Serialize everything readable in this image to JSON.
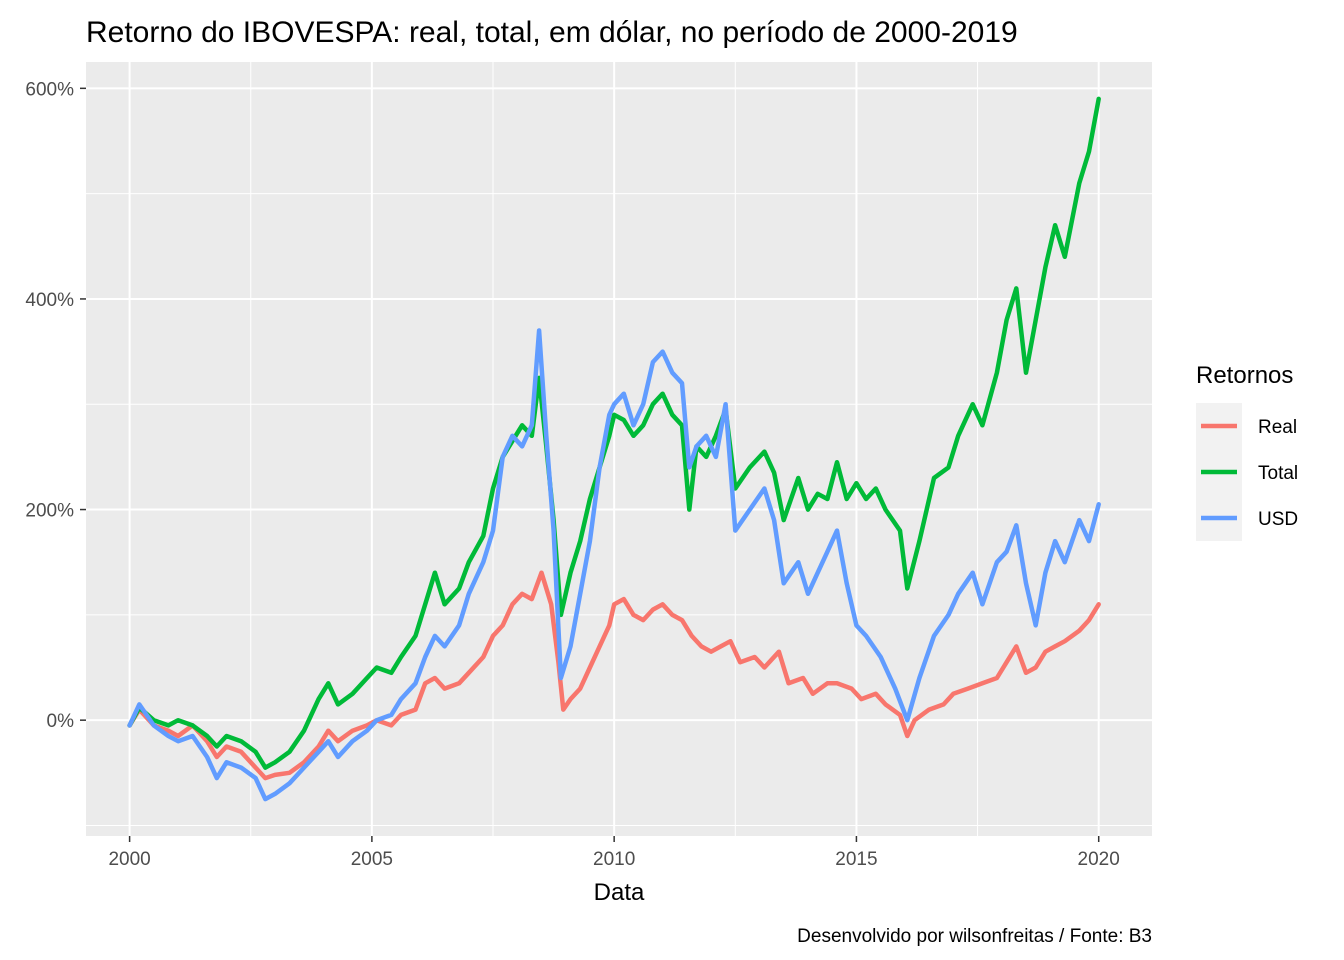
{
  "chart_data": {
    "type": "line",
    "title": "Retorno do IBOVESPA: real, total, em dólar, no período de 2000-2019",
    "xlabel": "Data",
    "ylabel": "",
    "caption": "Desenvolvido por wilsonfreitas / Fonte: B3",
    "xlim": [
      1999.1,
      2021.1
    ],
    "ylim": [
      -110,
      625
    ],
    "x_ticks": [
      2000,
      2005,
      2010,
      2015,
      2020
    ],
    "x_tick_labels": [
      "2000",
      "2005",
      "2010",
      "2015",
      "2020"
    ],
    "y_ticks": [
      0,
      200,
      400,
      600
    ],
    "y_tick_labels": [
      "0%",
      "200%",
      "400%",
      "600%"
    ],
    "grid": true,
    "legend": {
      "title": "Retornos",
      "position": "right"
    },
    "series": [
      {
        "name": "Real",
        "color": "#F8766D",
        "points": [
          [
            2000.0,
            -5
          ],
          [
            2000.2,
            10
          ],
          [
            2000.5,
            -5
          ],
          [
            2000.8,
            -10
          ],
          [
            2001.0,
            -15
          ],
          [
            2001.3,
            -5
          ],
          [
            2001.6,
            -20
          ],
          [
            2001.8,
            -35
          ],
          [
            2002.0,
            -25
          ],
          [
            2002.3,
            -30
          ],
          [
            2002.6,
            -45
          ],
          [
            2002.8,
            -55
          ],
          [
            2003.0,
            -52
          ],
          [
            2003.3,
            -50
          ],
          [
            2003.6,
            -40
          ],
          [
            2003.9,
            -25
          ],
          [
            2004.1,
            -10
          ],
          [
            2004.3,
            -20
          ],
          [
            2004.6,
            -10
          ],
          [
            2004.9,
            -5
          ],
          [
            2005.1,
            0
          ],
          [
            2005.4,
            -5
          ],
          [
            2005.6,
            5
          ],
          [
            2005.9,
            10
          ],
          [
            2006.1,
            35
          ],
          [
            2006.3,
            40
          ],
          [
            2006.5,
            30
          ],
          [
            2006.8,
            35
          ],
          [
            2007.0,
            45
          ],
          [
            2007.3,
            60
          ],
          [
            2007.5,
            80
          ],
          [
            2007.7,
            90
          ],
          [
            2007.9,
            110
          ],
          [
            2008.1,
            120
          ],
          [
            2008.3,
            115
          ],
          [
            2008.5,
            140
          ],
          [
            2008.7,
            110
          ],
          [
            2008.85,
            55
          ],
          [
            2008.95,
            10
          ],
          [
            2009.1,
            20
          ],
          [
            2009.3,
            30
          ],
          [
            2009.5,
            50
          ],
          [
            2009.7,
            70
          ],
          [
            2009.9,
            90
          ],
          [
            2010.0,
            110
          ],
          [
            2010.2,
            115
          ],
          [
            2010.4,
            100
          ],
          [
            2010.6,
            95
          ],
          [
            2010.8,
            105
          ],
          [
            2011.0,
            110
          ],
          [
            2011.2,
            100
          ],
          [
            2011.4,
            95
          ],
          [
            2011.6,
            80
          ],
          [
            2011.8,
            70
          ],
          [
            2012.0,
            65
          ],
          [
            2012.2,
            70
          ],
          [
            2012.4,
            75
          ],
          [
            2012.6,
            55
          ],
          [
            2012.9,
            60
          ],
          [
            2013.1,
            50
          ],
          [
            2013.4,
            65
          ],
          [
            2013.6,
            35
          ],
          [
            2013.9,
            40
          ],
          [
            2014.1,
            25
          ],
          [
            2014.4,
            35
          ],
          [
            2014.6,
            35
          ],
          [
            2014.9,
            30
          ],
          [
            2015.1,
            20
          ],
          [
            2015.4,
            25
          ],
          [
            2015.6,
            15
          ],
          [
            2015.9,
            5
          ],
          [
            2016.05,
            -15
          ],
          [
            2016.2,
            0
          ],
          [
            2016.5,
            10
          ],
          [
            2016.8,
            15
          ],
          [
            2017.0,
            25
          ],
          [
            2017.3,
            30
          ],
          [
            2017.6,
            35
          ],
          [
            2017.9,
            40
          ],
          [
            2018.1,
            55
          ],
          [
            2018.3,
            70
          ],
          [
            2018.5,
            45
          ],
          [
            2018.7,
            50
          ],
          [
            2018.9,
            65
          ],
          [
            2019.1,
            70
          ],
          [
            2019.3,
            75
          ],
          [
            2019.6,
            85
          ],
          [
            2019.8,
            95
          ],
          [
            2020.0,
            110
          ]
        ]
      },
      {
        "name": "Total",
        "color": "#00BA38",
        "points": [
          [
            2000.0,
            -5
          ],
          [
            2000.2,
            12
          ],
          [
            2000.5,
            0
          ],
          [
            2000.8,
            -5
          ],
          [
            2001.0,
            0
          ],
          [
            2001.3,
            -5
          ],
          [
            2001.6,
            -15
          ],
          [
            2001.8,
            -25
          ],
          [
            2002.0,
            -15
          ],
          [
            2002.3,
            -20
          ],
          [
            2002.6,
            -30
          ],
          [
            2002.8,
            -45
          ],
          [
            2003.0,
            -40
          ],
          [
            2003.3,
            -30
          ],
          [
            2003.6,
            -10
          ],
          [
            2003.9,
            20
          ],
          [
            2004.1,
            35
          ],
          [
            2004.3,
            15
          ],
          [
            2004.6,
            25
          ],
          [
            2004.9,
            40
          ],
          [
            2005.1,
            50
          ],
          [
            2005.4,
            45
          ],
          [
            2005.6,
            60
          ],
          [
            2005.9,
            80
          ],
          [
            2006.1,
            110
          ],
          [
            2006.3,
            140
          ],
          [
            2006.5,
            110
          ],
          [
            2006.8,
            125
          ],
          [
            2007.0,
            150
          ],
          [
            2007.3,
            175
          ],
          [
            2007.5,
            220
          ],
          [
            2007.7,
            250
          ],
          [
            2007.9,
            265
          ],
          [
            2008.1,
            280
          ],
          [
            2008.3,
            270
          ],
          [
            2008.45,
            325
          ],
          [
            2008.6,
            260
          ],
          [
            2008.75,
            190
          ],
          [
            2008.9,
            100
          ],
          [
            2009.1,
            140
          ],
          [
            2009.3,
            170
          ],
          [
            2009.5,
            210
          ],
          [
            2009.7,
            240
          ],
          [
            2009.9,
            270
          ],
          [
            2010.0,
            290
          ],
          [
            2010.2,
            285
          ],
          [
            2010.4,
            270
          ],
          [
            2010.6,
            280
          ],
          [
            2010.8,
            300
          ],
          [
            2011.0,
            310
          ],
          [
            2011.2,
            290
          ],
          [
            2011.4,
            280
          ],
          [
            2011.55,
            200
          ],
          [
            2011.7,
            260
          ],
          [
            2011.9,
            250
          ],
          [
            2012.1,
            270
          ],
          [
            2012.3,
            295
          ],
          [
            2012.5,
            220
          ],
          [
            2012.8,
            240
          ],
          [
            2013.1,
            255
          ],
          [
            2013.3,
            235
          ],
          [
            2013.5,
            190
          ],
          [
            2013.8,
            230
          ],
          [
            2014.0,
            200
          ],
          [
            2014.2,
            215
          ],
          [
            2014.4,
            210
          ],
          [
            2014.6,
            245
          ],
          [
            2014.8,
            210
          ],
          [
            2015.0,
            225
          ],
          [
            2015.2,
            210
          ],
          [
            2015.4,
            220
          ],
          [
            2015.6,
            200
          ],
          [
            2015.9,
            180
          ],
          [
            2016.05,
            125
          ],
          [
            2016.3,
            170
          ],
          [
            2016.6,
            230
          ],
          [
            2016.9,
            240
          ],
          [
            2017.1,
            270
          ],
          [
            2017.4,
            300
          ],
          [
            2017.6,
            280
          ],
          [
            2017.9,
            330
          ],
          [
            2018.1,
            380
          ],
          [
            2018.3,
            410
          ],
          [
            2018.5,
            330
          ],
          [
            2018.7,
            380
          ],
          [
            2018.9,
            430
          ],
          [
            2019.1,
            470
          ],
          [
            2019.3,
            440
          ],
          [
            2019.6,
            510
          ],
          [
            2019.8,
            540
          ],
          [
            2020.0,
            590
          ]
        ]
      },
      {
        "name": "USD",
        "color": "#619CFF",
        "points": [
          [
            2000.0,
            -5
          ],
          [
            2000.2,
            15
          ],
          [
            2000.5,
            -5
          ],
          [
            2000.8,
            -15
          ],
          [
            2001.0,
            -20
          ],
          [
            2001.3,
            -15
          ],
          [
            2001.6,
            -35
          ],
          [
            2001.8,
            -55
          ],
          [
            2002.0,
            -40
          ],
          [
            2002.3,
            -45
          ],
          [
            2002.6,
            -55
          ],
          [
            2002.8,
            -75
          ],
          [
            2003.0,
            -70
          ],
          [
            2003.3,
            -60
          ],
          [
            2003.6,
            -45
          ],
          [
            2003.9,
            -30
          ],
          [
            2004.1,
            -20
          ],
          [
            2004.3,
            -35
          ],
          [
            2004.6,
            -20
          ],
          [
            2004.9,
            -10
          ],
          [
            2005.1,
            0
          ],
          [
            2005.4,
            5
          ],
          [
            2005.6,
            20
          ],
          [
            2005.9,
            35
          ],
          [
            2006.1,
            60
          ],
          [
            2006.3,
            80
          ],
          [
            2006.5,
            70
          ],
          [
            2006.8,
            90
          ],
          [
            2007.0,
            120
          ],
          [
            2007.3,
            150
          ],
          [
            2007.5,
            180
          ],
          [
            2007.7,
            250
          ],
          [
            2007.9,
            270
          ],
          [
            2008.1,
            260
          ],
          [
            2008.3,
            280
          ],
          [
            2008.45,
            370
          ],
          [
            2008.6,
            270
          ],
          [
            2008.75,
            180
          ],
          [
            2008.9,
            40
          ],
          [
            2009.1,
            70
          ],
          [
            2009.3,
            120
          ],
          [
            2009.5,
            170
          ],
          [
            2009.7,
            240
          ],
          [
            2009.9,
            290
          ],
          [
            2010.0,
            300
          ],
          [
            2010.2,
            310
          ],
          [
            2010.4,
            280
          ],
          [
            2010.6,
            300
          ],
          [
            2010.8,
            340
          ],
          [
            2011.0,
            350
          ],
          [
            2011.2,
            330
          ],
          [
            2011.4,
            320
          ],
          [
            2011.55,
            240
          ],
          [
            2011.7,
            260
          ],
          [
            2011.9,
            270
          ],
          [
            2012.1,
            250
          ],
          [
            2012.3,
            300
          ],
          [
            2012.5,
            180
          ],
          [
            2012.8,
            200
          ],
          [
            2013.1,
            220
          ],
          [
            2013.3,
            190
          ],
          [
            2013.5,
            130
          ],
          [
            2013.8,
            150
          ],
          [
            2014.0,
            120
          ],
          [
            2014.2,
            140
          ],
          [
            2014.4,
            160
          ],
          [
            2014.6,
            180
          ],
          [
            2014.8,
            130
          ],
          [
            2015.0,
            90
          ],
          [
            2015.2,
            80
          ],
          [
            2015.5,
            60
          ],
          [
            2015.8,
            30
          ],
          [
            2016.05,
            0
          ],
          [
            2016.3,
            40
          ],
          [
            2016.6,
            80
          ],
          [
            2016.9,
            100
          ],
          [
            2017.1,
            120
          ],
          [
            2017.4,
            140
          ],
          [
            2017.6,
            110
          ],
          [
            2017.9,
            150
          ],
          [
            2018.1,
            160
          ],
          [
            2018.3,
            185
          ],
          [
            2018.5,
            130
          ],
          [
            2018.7,
            90
          ],
          [
            2018.9,
            140
          ],
          [
            2019.1,
            170
          ],
          [
            2019.3,
            150
          ],
          [
            2019.6,
            190
          ],
          [
            2019.8,
            170
          ],
          [
            2020.0,
            205
          ]
        ]
      }
    ]
  }
}
